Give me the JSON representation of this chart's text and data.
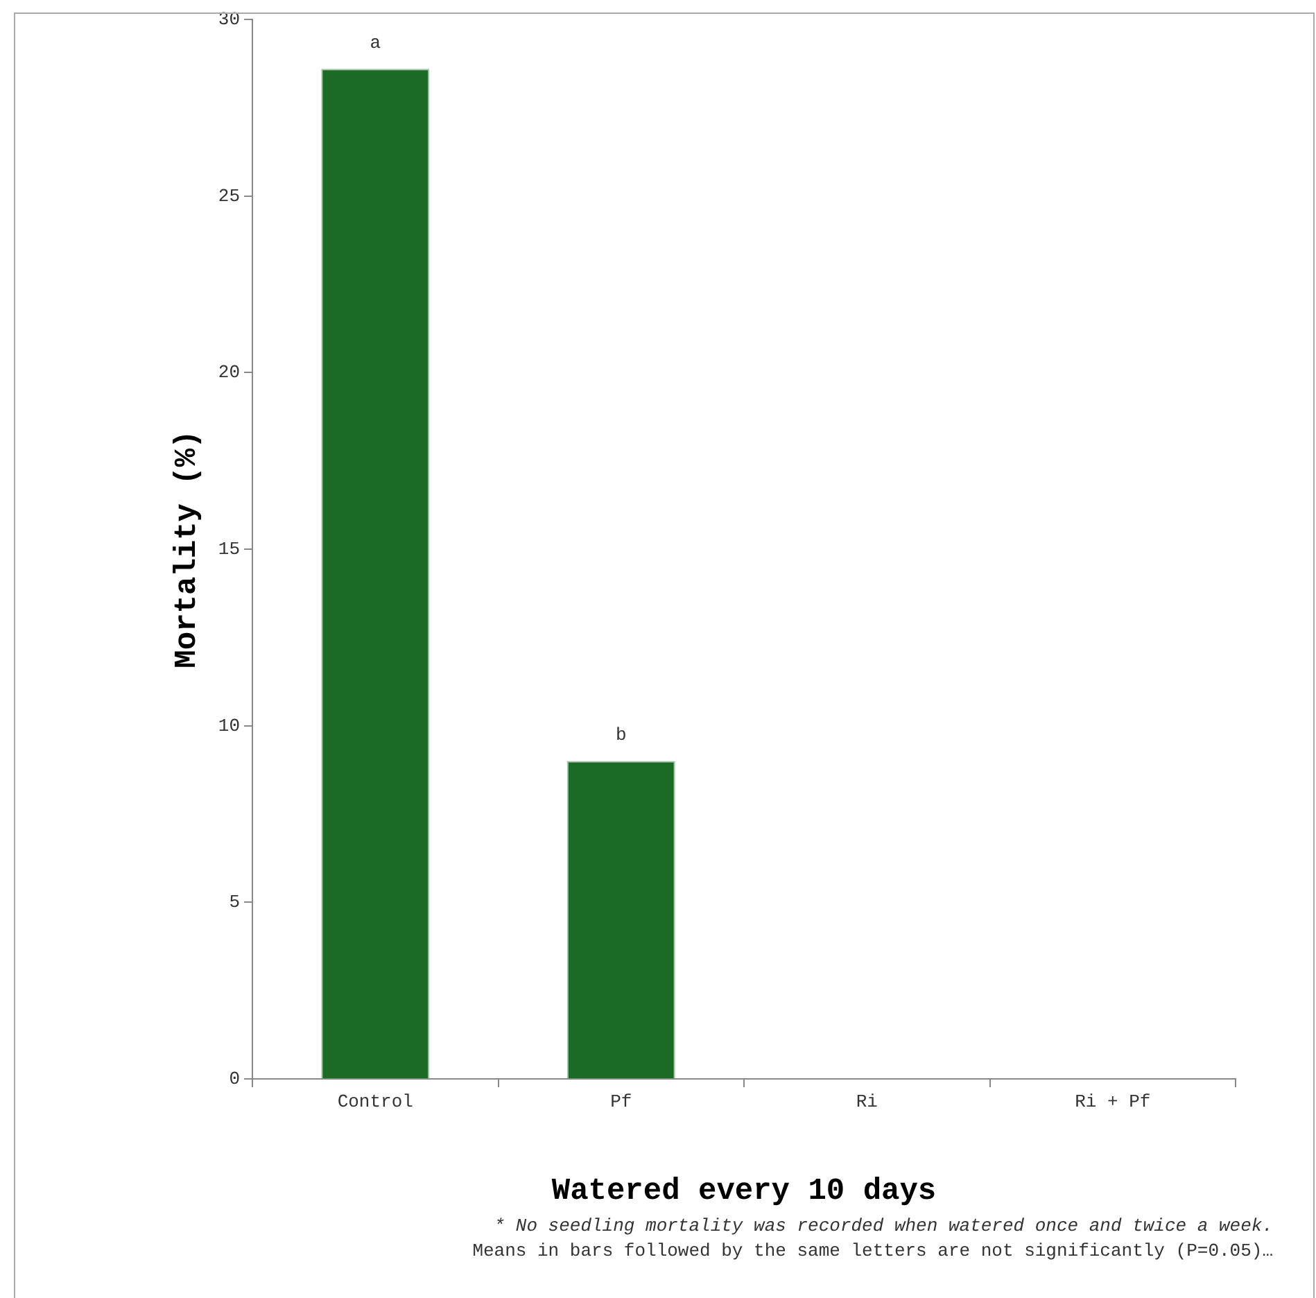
{
  "chart_data": {
    "type": "bar",
    "categories": [
      "Control",
      "Pf",
      "Ri",
      "Ri + Pf"
    ],
    "values": [
      28.6,
      9,
      0,
      0
    ],
    "color": "#1b6b26",
    "ylim": [
      0,
      30
    ],
    "yticks": [
      0,
      5,
      10,
      15,
      20,
      25,
      30
    ],
    "grid": false,
    "legend": false,
    "xlabel": "Watered every 10 days",
    "ylabel": "Mortality (%)",
    "annotations": [
      {
        "text": "a",
        "x": "Control",
        "y": 28.6
      },
      {
        "text": "b",
        "x": "Pf",
        "y": 9
      },
      "* No seedling mortality was recorded when watered once and twice a week.",
      "Means in bars followed by the same letters are not significantly (P=0.05)…"
    ]
  }
}
